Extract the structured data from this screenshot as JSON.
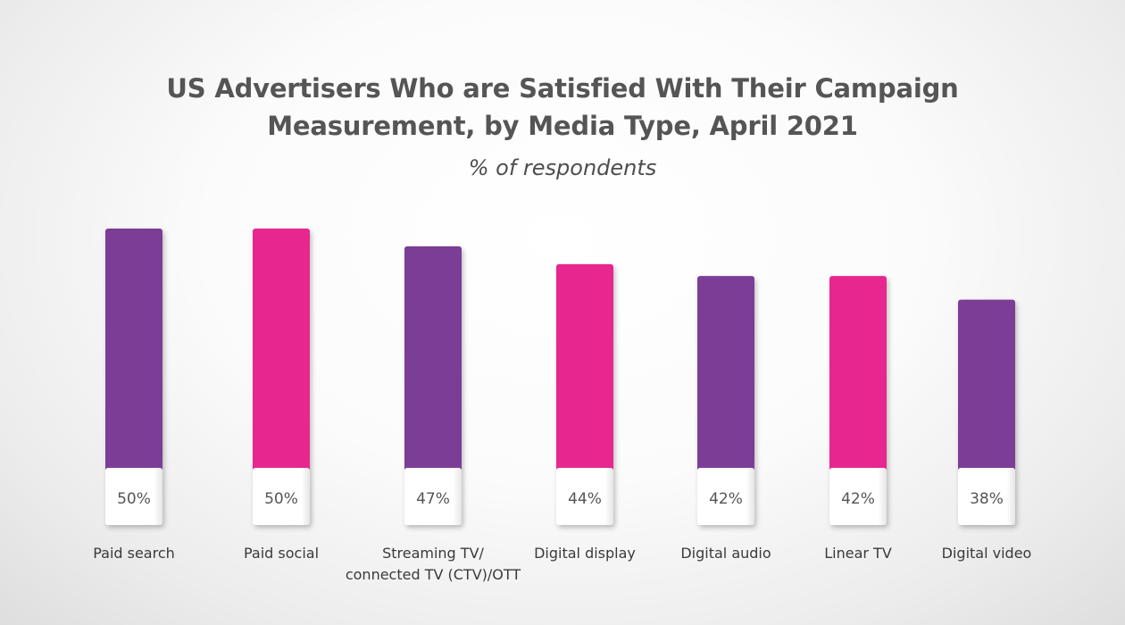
{
  "chart_data": {
    "type": "bar",
    "title": "US Advertisers Who are Satisfied With Their Campaign Measurement, by Media Type, April 2021",
    "subtitle": "% of respondents",
    "categories": [
      [
        "Paid search"
      ],
      [
        "Paid social"
      ],
      [
        "Streaming TV/",
        "connected TV (CTV)/OTT"
      ],
      [
        "Digital display"
      ],
      [
        "Digital audio"
      ],
      [
        "Linear TV"
      ],
      [
        "Digital video"
      ]
    ],
    "values": [
      50,
      50,
      47,
      44,
      42,
      42,
      38
    ],
    "value_labels": [
      "50%",
      "50%",
      "47%",
      "44%",
      "42%",
      "42%",
      "38%"
    ],
    "bar_colors": [
      "#7b3d96",
      "#e8288f",
      "#7b3d96",
      "#e8288f",
      "#7b3d96",
      "#e8288f",
      "#7b3d96"
    ],
    "label_box_color": "#ffffff",
    "xlabel": "",
    "ylabel": "",
    "grid": false,
    "legend": "none"
  }
}
